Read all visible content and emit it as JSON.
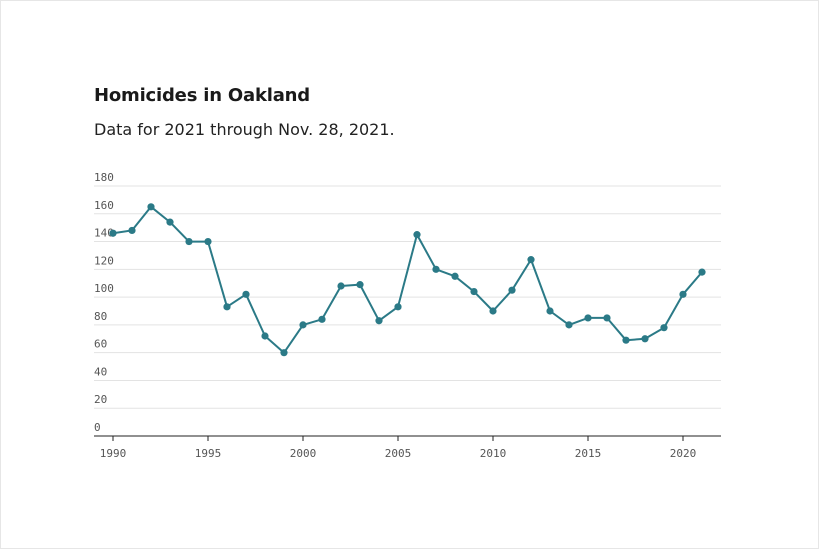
{
  "title": "Homicides in Oakland",
  "subtitle": "Data for 2021 through Nov. 28, 2021.",
  "chart_data": {
    "type": "line",
    "title": "Homicides in Oakland",
    "subtitle": "Data for 2021 through Nov. 28, 2021.",
    "xlabel": "",
    "ylabel": "",
    "x": [
      1990,
      1991,
      1992,
      1993,
      1994,
      1995,
      1996,
      1997,
      1998,
      1999,
      2000,
      2001,
      2002,
      2003,
      2004,
      2005,
      2006,
      2007,
      2008,
      2009,
      2010,
      2011,
      2012,
      2013,
      2014,
      2015,
      2016,
      2017,
      2018,
      2019,
      2020,
      2021
    ],
    "series": [
      {
        "values": [
          146,
          148,
          165,
          154,
          140,
          140,
          93,
          102,
          72,
          60,
          80,
          84,
          108,
          109,
          83,
          93,
          145,
          120,
          115,
          104,
          90,
          105,
          127,
          90,
          80,
          85,
          85,
          69,
          70,
          78,
          102,
          118
        ],
        "color": "#2b7a87"
      }
    ],
    "ylim": [
      0,
      180
    ],
    "xlim": [
      1989,
      2022
    ],
    "yticks": [
      0,
      20,
      40,
      60,
      80,
      100,
      120,
      140,
      160,
      180
    ],
    "xticks": [
      1990,
      1995,
      2000,
      2005,
      2010,
      2015,
      2020
    ],
    "grid": true,
    "marker": "circle"
  }
}
